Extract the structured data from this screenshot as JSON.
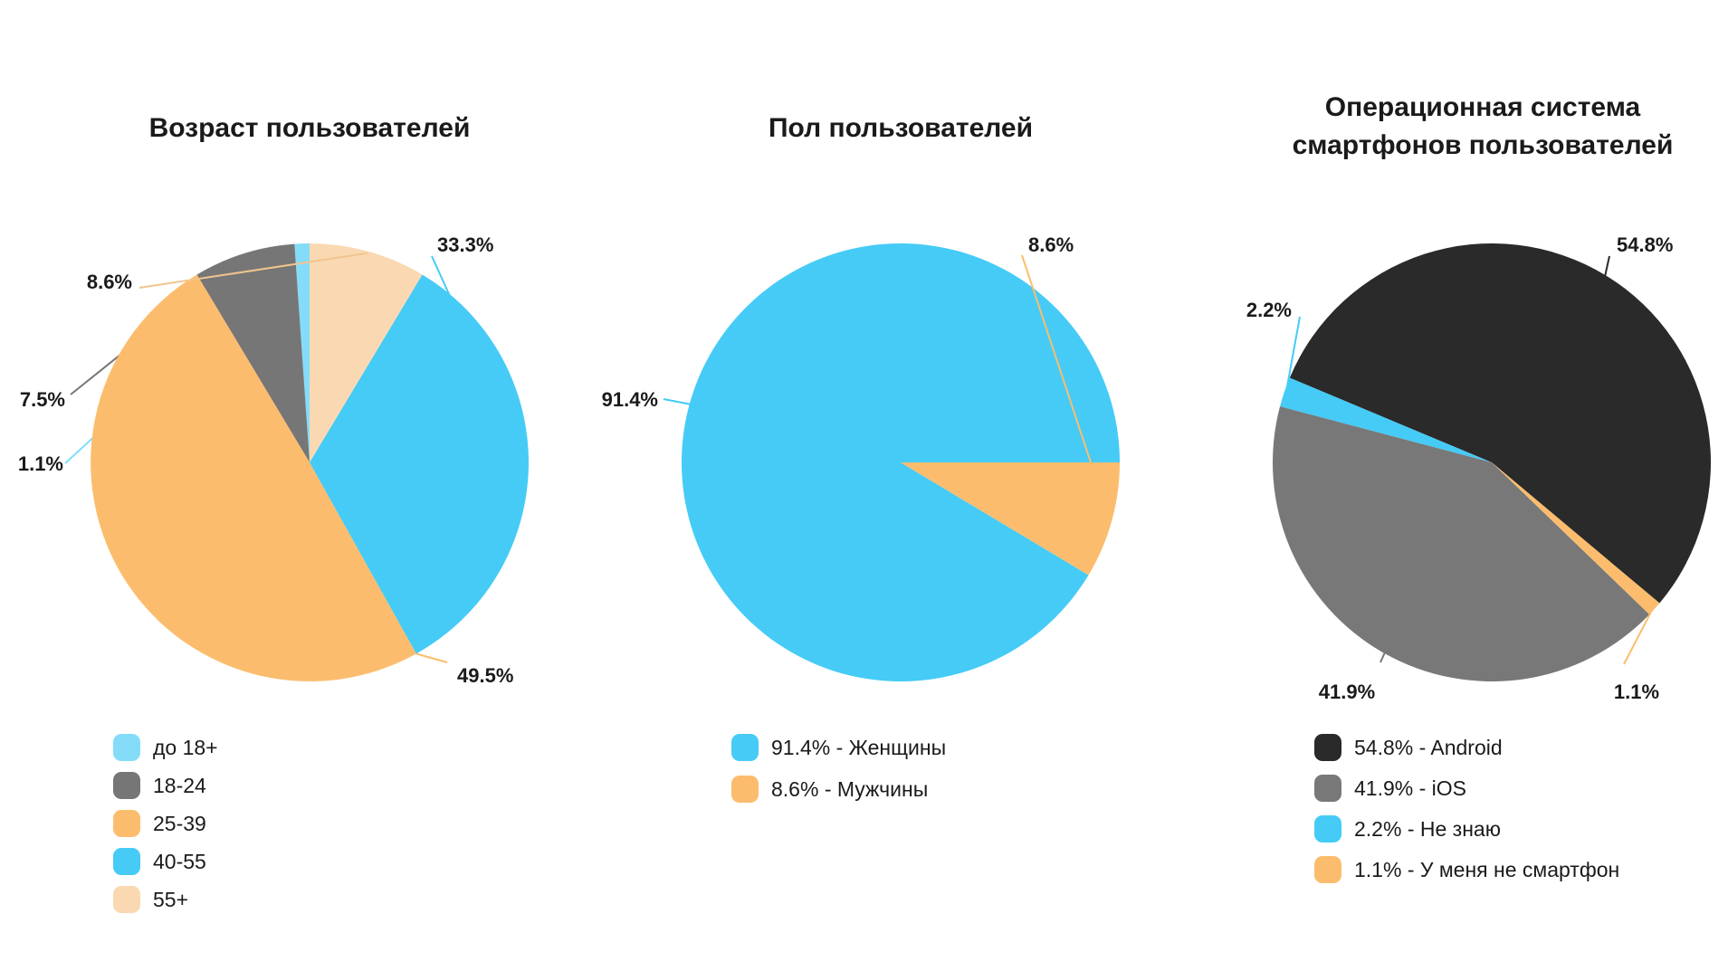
{
  "chart_data": [
    {
      "type": "pie",
      "title": [
        "Возраст пользователей"
      ],
      "start_angle_deg": 90,
      "direction": "counterclockwise",
      "slices": [
        {
          "label": "до 18+",
          "value": 1.1,
          "value_label": "1.1%",
          "color": "#84DCF9"
        },
        {
          "label": "18-24",
          "value": 7.5,
          "value_label": "7.5%",
          "color": "#767676"
        },
        {
          "label": "25-39",
          "value": 49.5,
          "value_label": "49.5%",
          "color": "#FBBD6D"
        },
        {
          "label": "40-55",
          "value": 33.3,
          "value_label": "33.3%",
          "color": "#45CBF6"
        },
        {
          "label": "55+",
          "value": 8.6,
          "value_label": "8.6%",
          "color": "#FAD9B2"
        }
      ],
      "legend": [
        "до 18+",
        "18-24",
        "25-39",
        "40-55",
        "55+"
      ],
      "legend_order": [
        0,
        1,
        2,
        3,
        4
      ],
      "legend_position": "bottom-left"
    },
    {
      "type": "pie",
      "title": [
        "Пол пользователей"
      ],
      "start_angle_deg": 0,
      "direction": "counterclockwise",
      "slices": [
        {
          "label": "Женщины",
          "value": 91.4,
          "value_label": "91.4%",
          "color": "#45CBF6"
        },
        {
          "label": "Мужчины",
          "value": 8.6,
          "value_label": "8.6%",
          "color": "#FBBD6D"
        }
      ],
      "legend": [
        "91.4% - Женщины",
        "8.6% - Мужчины"
      ],
      "legend_order": [
        0,
        1
      ],
      "legend_position": "bottom-left"
    },
    {
      "type": "pie",
      "title": [
        "Операционная система",
        "смартфонов пользователей"
      ],
      "start_angle_deg": -40,
      "direction": "counterclockwise",
      "slices": [
        {
          "label": "Android",
          "value": 54.8,
          "value_label": "54.8%",
          "color": "#2A2A2A"
        },
        {
          "label": "Не знаю",
          "value": 2.2,
          "value_label": "2.2%",
          "color": "#45CBF6"
        },
        {
          "label": "iOS",
          "value": 41.9,
          "value_label": "41.9%",
          "color": "#787878"
        },
        {
          "label": "У меня не смартфон",
          "value": 1.1,
          "value_label": "1.1%",
          "color": "#FBBD6D"
        }
      ],
      "legend": [
        "54.8% - Android",
        "41.9% - iOS",
        "2.2% - Не знаю",
        "1.1% - У меня не смартфон"
      ],
      "legend_order": [
        0,
        2,
        1,
        3
      ],
      "legend_position": "bottom-left"
    }
  ]
}
